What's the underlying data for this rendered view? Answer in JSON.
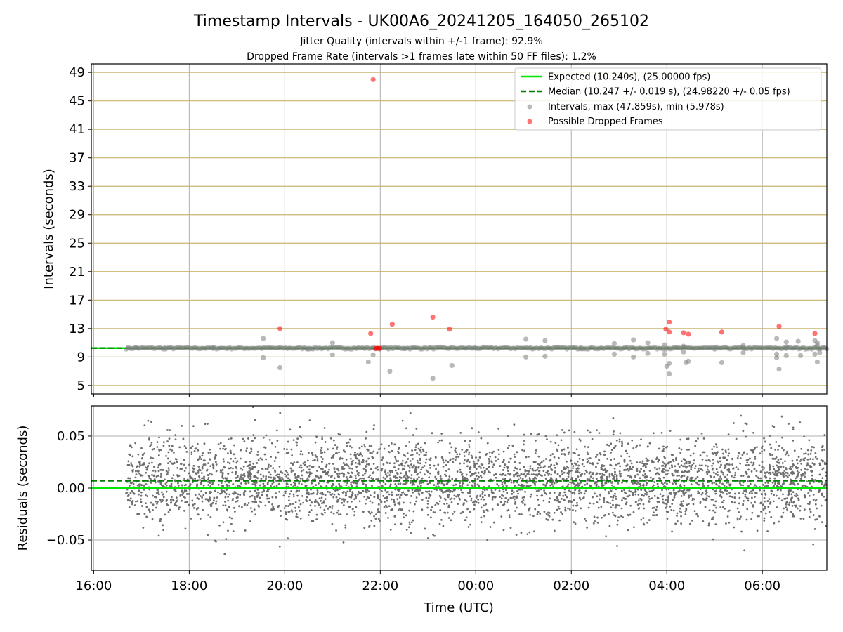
{
  "title": "Timestamp Intervals - UK00A6_20241205_164050_265102",
  "subtitle_1": "Jitter Quality (intervals within +/-1 frame): 92.9%",
  "subtitle_2": "Dropped Frame Rate (intervals >1 frames late within 50 FF files): 1.2%",
  "colors": {
    "expected": "#00e600",
    "median": "#007f00",
    "intervals": "#808080",
    "dropped": "#ff0000",
    "hgrid_top": "#c8b46e",
    "grid": "#b0b0b0",
    "residual_points": "#6e6e6e"
  },
  "chart_data": [
    {
      "type": "scatter",
      "ylabel": "Intervals (seconds)",
      "xlabel": "",
      "x_unit": "hours since 16:00 UTC",
      "xlim_hours": [
        -0.05,
        15.35
      ],
      "ylim": [
        3.8,
        50.2
      ],
      "yticks": [
        5,
        9,
        13,
        17,
        21,
        25,
        29,
        33,
        37,
        41,
        45,
        49
      ],
      "xticks": [
        "16:00",
        "18:00",
        "20:00",
        "22:00",
        "00:00",
        "02:00",
        "04:00",
        "06:00"
      ],
      "grid": true,
      "legend_position": "top-right",
      "legend": [
        "Expected (10.240s), (25.00000 fps)",
        "Median (10.247 +/- 0.019 s), (24.98220 +/- 0.05 fps)",
        "Intervals, max (47.859s), min (5.978s)",
        "Possible Dropped Frames"
      ],
      "expected_value": 10.24,
      "median_value": 10.247,
      "main_band_x_range_hours": [
        0.68,
        15.35
      ],
      "series": [
        {
          "name": "Intervals, max (47.859s), min (5.978s)",
          "points": [
            [
              3.55,
              11.6
            ],
            [
              3.55,
              8.9
            ],
            [
              3.9,
              7.5
            ],
            [
              5.0,
              11.0
            ],
            [
              5.0,
              9.3
            ],
            [
              5.75,
              8.3
            ],
            [
              5.85,
              9.3
            ],
            [
              6.2,
              7.0
            ],
            [
              7.1,
              6.0
            ],
            [
              7.5,
              7.8
            ],
            [
              9.05,
              11.5
            ],
            [
              9.05,
              9.0
            ],
            [
              9.45,
              11.3
            ],
            [
              9.45,
              9.1
            ],
            [
              10.9,
              10.9
            ],
            [
              10.9,
              9.4
            ],
            [
              11.3,
              11.4
            ],
            [
              11.3,
              9.0
            ],
            [
              11.6,
              11.0
            ],
            [
              11.6,
              9.5
            ],
            [
              11.95,
              10.7
            ],
            [
              11.95,
              9.4
            ],
            [
              12.0,
              7.7
            ],
            [
              12.05,
              8.1
            ],
            [
              12.05,
              6.6
            ],
            [
              12.35,
              10.5
            ],
            [
              12.35,
              9.7
            ],
            [
              12.4,
              8.2
            ],
            [
              12.45,
              8.4
            ],
            [
              13.15,
              8.2
            ],
            [
              13.6,
              10.6
            ],
            [
              13.6,
              9.6
            ],
            [
              14.3,
              11.6
            ],
            [
              14.3,
              8.9
            ],
            [
              14.35,
              7.3
            ],
            [
              14.3,
              9.4
            ],
            [
              14.5,
              10.4
            ],
            [
              14.5,
              9.2
            ],
            [
              14.8,
              9.2
            ],
            [
              15.1,
              11.3
            ],
            [
              15.1,
              9.4
            ],
            [
              15.15,
              10.6
            ],
            [
              15.15,
              8.3
            ],
            [
              15.2,
              9.6
            ],
            [
              14.5,
              11.1
            ],
            [
              14.75,
              11.2
            ],
            [
              15.15,
              11.0
            ],
            [
              0.9,
              10.3
            ],
            [
              1.5,
              10.1
            ],
            [
              2.5,
              10.2
            ],
            [
              4.5,
              10.1
            ],
            [
              6.5,
              10.2
            ],
            [
              8.0,
              10.2
            ],
            [
              10.2,
              10.3
            ],
            [
              13.0,
              10.1
            ]
          ]
        },
        {
          "name": "Possible Dropped Frames",
          "points": [
            [
              3.9,
              13.0
            ],
            [
              5.8,
              12.3
            ],
            [
              5.85,
              48.0
            ],
            [
              6.25,
              13.6
            ],
            [
              7.1,
              14.6
            ],
            [
              7.45,
              12.9
            ],
            [
              11.98,
              12.9
            ],
            [
              12.05,
              12.5
            ],
            [
              12.05,
              13.9
            ],
            [
              12.35,
              12.4
            ],
            [
              12.45,
              12.2
            ],
            [
              13.15,
              12.5
            ],
            [
              14.35,
              13.3
            ],
            [
              15.1,
              12.3
            ],
            [
              5.9,
              10.2
            ],
            [
              5.93,
              10.2
            ],
            [
              5.96,
              10.2
            ],
            [
              5.99,
              10.2
            ]
          ]
        }
      ]
    },
    {
      "type": "scatter",
      "ylabel": "Residuals (seconds)",
      "xlabel": "Time (UTC)",
      "xlim_hours": [
        -0.05,
        15.35
      ],
      "ylim": [
        -0.079,
        0.079
      ],
      "yticks": [
        "0.05",
        "0.00",
        "−0.05"
      ],
      "ytick_values": [
        0.05,
        0.0,
        -0.05
      ],
      "xticks": [
        "16:00",
        "18:00",
        "20:00",
        "22:00",
        "00:00",
        "02:00",
        "04:00",
        "06:00"
      ],
      "expected_residual": 0.0,
      "median_residual": 0.007,
      "residual_x_range_hours": [
        0.68,
        15.35
      ],
      "residual_mean": 0.007,
      "residual_spread_sd": 0.02,
      "residual_point_count": 4000
    }
  ]
}
